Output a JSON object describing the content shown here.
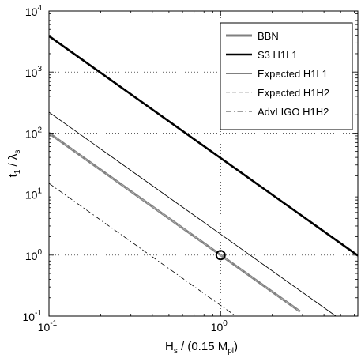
{
  "chart_data": {
    "type": "line",
    "xscale": "log",
    "yscale": "log",
    "xlim": [
      0.1,
      6.3
    ],
    "ylim": [
      0.1,
      10000
    ],
    "grid": true,
    "legend_position": "top-right",
    "x_ticks": [
      {
        "value": 0.1,
        "base": "10",
        "exp": "-1"
      },
      {
        "value": 1,
        "base": "10",
        "exp": "0"
      }
    ],
    "y_ticks": [
      {
        "value": 0.1,
        "base": "10",
        "exp": "-1"
      },
      {
        "value": 1,
        "base": "10",
        "exp": "0"
      },
      {
        "value": 10,
        "base": "10",
        "exp": "1"
      },
      {
        "value": 100,
        "base": "10",
        "exp": "2"
      },
      {
        "value": 1000,
        "base": "10",
        "exp": "3"
      },
      {
        "value": 10000,
        "base": "10",
        "exp": "4"
      }
    ],
    "xlabel": {
      "main": "H",
      "sub1": "s",
      "mid": " / (0.15 M",
      "sub2": "pl",
      "end": ")"
    },
    "ylabel": {
      "main": "t",
      "sub1": "1",
      "mid": " / λ",
      "sub2": "s"
    },
    "series": [
      {
        "name": "BBN",
        "style": "thick-gray",
        "color": "#808080",
        "x": [
          0.1,
          2.9
        ],
        "y": [
          100,
          0.1189
        ]
      },
      {
        "name": "S3 H1L1",
        "style": "thick-black",
        "color": "#000000",
        "x": [
          0.1,
          6.3
        ],
        "y": [
          3900,
          0.9825
        ]
      },
      {
        "name": "Expected H1L1",
        "style": "thin-black",
        "color": "#000000",
        "x": [
          0.1,
          4.9
        ],
        "y": [
          220,
          0.0916
        ]
      },
      {
        "name": "Expected H1H2",
        "style": "dashed-gray",
        "color": "#808080",
        "x": [
          0.1,
          2.9
        ],
        "y": [
          100,
          0.1189
        ]
      },
      {
        "name": "AdvLIGO H1H2",
        "style": "dashdot-black",
        "color": "#000000",
        "x": [
          0.1,
          1.3
        ],
        "y": [
          15,
          0.0888
        ]
      }
    ],
    "markers": [
      {
        "x": 1,
        "y": 1,
        "shape": "circle"
      }
    ]
  }
}
